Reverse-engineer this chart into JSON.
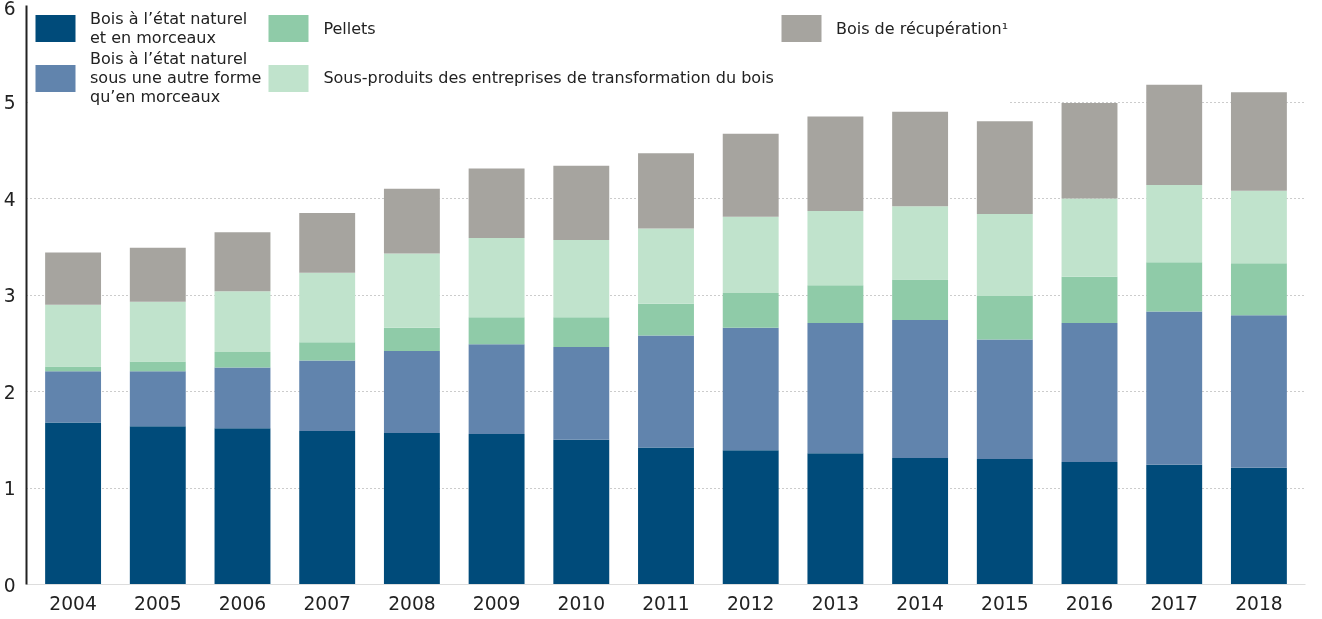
{
  "chart_data": {
    "type": "bar",
    "stacked": true,
    "categories": [
      "2004",
      "2005",
      "2006",
      "2007",
      "2008",
      "2009",
      "2010",
      "2011",
      "2012",
      "2013",
      "2014",
      "2015",
      "2016",
      "2017",
      "2018"
    ],
    "series": [
      {
        "name": "Bois à l’état naturel\net en morceaux",
        "color": "#004b7a",
        "values": [
          1.68,
          1.64,
          1.62,
          1.59,
          1.57,
          1.56,
          1.5,
          1.42,
          1.39,
          1.36,
          1.31,
          1.3,
          1.27,
          1.24,
          1.21
        ]
      },
      {
        "name": "Bois à l’état naturel\nsous une autre forme\nqu’en morceaux",
        "color": "#6184ad",
        "values": [
          0.53,
          0.57,
          0.63,
          0.73,
          0.85,
          0.93,
          0.96,
          1.16,
          1.27,
          1.35,
          1.43,
          1.24,
          1.44,
          1.59,
          1.58
        ]
      },
      {
        "name": "Pellets",
        "color": "#8fcba8",
        "values": [
          0.05,
          0.1,
          0.16,
          0.19,
          0.24,
          0.28,
          0.31,
          0.33,
          0.36,
          0.39,
          0.42,
          0.45,
          0.48,
          0.51,
          0.54
        ]
      },
      {
        "name": "Sous-produits des entreprises de transformation du bois",
        "color": "#c0e3cc",
        "values": [
          0.64,
          0.62,
          0.63,
          0.72,
          0.77,
          0.82,
          0.8,
          0.78,
          0.79,
          0.77,
          0.76,
          0.85,
          0.81,
          0.8,
          0.75
        ]
      },
      {
        "name": "Bois de récupération¹",
        "color": "#a6a49f",
        "values": [
          0.54,
          0.56,
          0.61,
          0.62,
          0.67,
          0.72,
          0.77,
          0.78,
          0.86,
          0.98,
          0.98,
          0.96,
          0.99,
          1.04,
          1.02
        ]
      }
    ],
    "ylim": [
      0,
      6
    ],
    "yticks": [
      0,
      1,
      2,
      3,
      4,
      5,
      6
    ],
    "grid": "y",
    "legend": "top left"
  }
}
